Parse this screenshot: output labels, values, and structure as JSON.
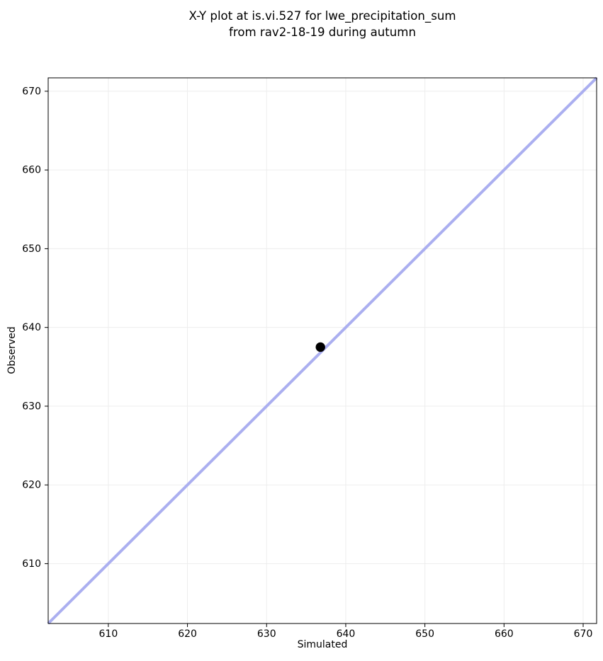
{
  "figure": {
    "title": {
      "line1": "X-Y plot at is.vi.527 for lwe_precipitation_sum",
      "line2": "from rav2-18-19 during autumn"
    }
  },
  "chart_data": {
    "type": "scatter",
    "title": "X-Y plot at is.vi.527 for lwe_precipitation_sum\nfrom rav2-18-19 during autumn",
    "xlabel": "Simulated",
    "ylabel": "Observed",
    "xlim": [
      602.4,
      671.7
    ],
    "ylim": [
      602.4,
      671.7
    ],
    "xticks": [
      610,
      620,
      630,
      640,
      650,
      660,
      670
    ],
    "yticks": [
      610,
      620,
      630,
      640,
      650,
      660,
      670
    ],
    "grid": true,
    "legend": "none",
    "points": [
      {
        "x": 636.8,
        "y": 637.5
      }
    ],
    "identity_line": {
      "x1": 602.4,
      "y1": 602.4,
      "x2": 671.7,
      "y2": 671.7
    },
    "styles": {
      "point_color": "#000000",
      "point_radius": 6.7,
      "line_color": "#abaff0",
      "line_width": 4,
      "grid_color": "#ededed",
      "spine_color": "#000000",
      "tick_color": "#000000",
      "tick_label_color": "#000000",
      "tick_font_size": 14,
      "background": "#ffffff"
    }
  }
}
